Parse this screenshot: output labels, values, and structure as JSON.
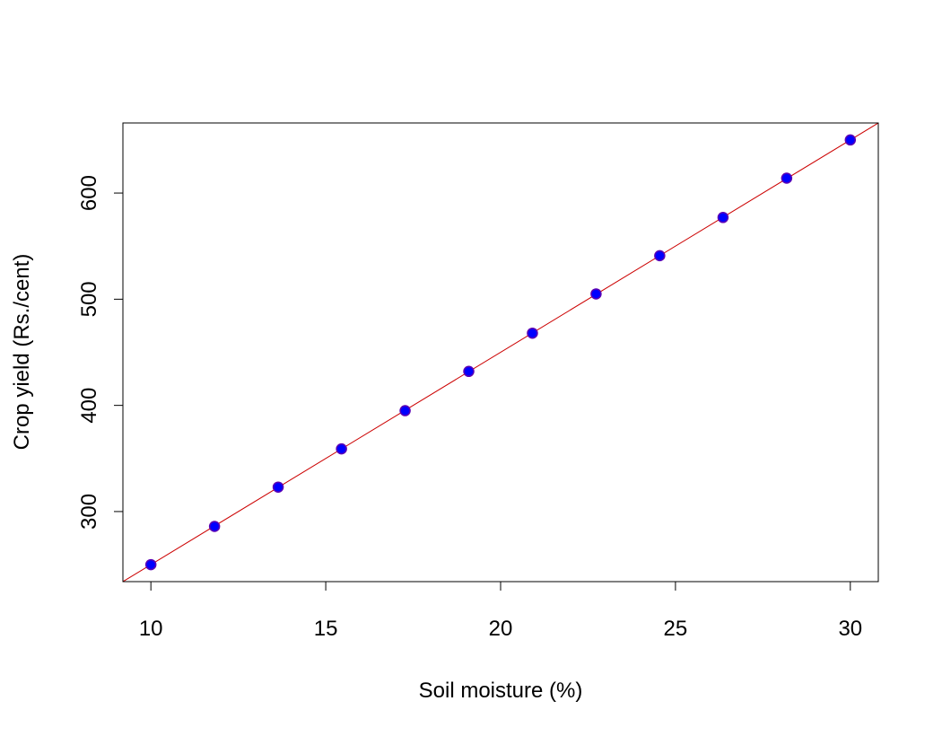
{
  "chart_data": {
    "type": "scatter",
    "xlabel": "Soil moisture (%)",
    "ylabel": "Crop yield (Rs./cent)",
    "xlim": [
      9.2,
      30.8
    ],
    "ylim": [
      234,
      666
    ],
    "x_ticks": [
      10,
      15,
      20,
      25,
      30
    ],
    "y_ticks": [
      300,
      400,
      500,
      600
    ],
    "grid": false,
    "series": [
      {
        "x": [
          10,
          11.82,
          13.64,
          15.45,
          17.27,
          19.09,
          20.91,
          22.73,
          24.55,
          26.36,
          28.18,
          30
        ],
        "y": [
          250,
          286,
          323,
          359,
          395,
          432,
          468,
          505,
          541,
          577,
          614,
          650
        ],
        "color": "#0000ff",
        "edge_color": "#5a00b4"
      }
    ],
    "fit_line": {
      "intercept": 50,
      "slope": 20,
      "color": "#cc0000"
    }
  }
}
